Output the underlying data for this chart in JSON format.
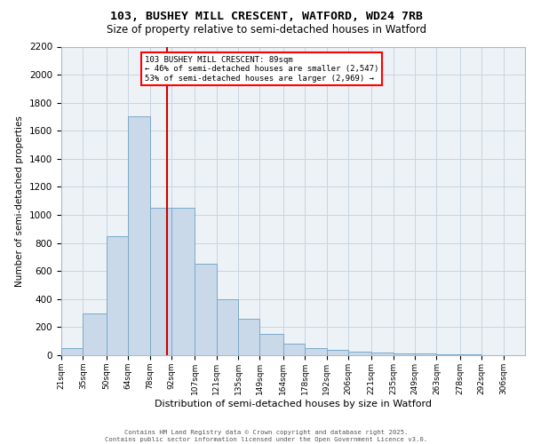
{
  "title_line1": "103, BUSHEY MILL CRESCENT, WATFORD, WD24 7RB",
  "title_line2": "Size of property relative to semi-detached houses in Watford",
  "xlabel": "Distribution of semi-detached houses by size in Watford",
  "ylabel": "Number of semi-detached properties",
  "annotation_line1": "103 BUSHEY MILL CRESCENT: 89sqm",
  "annotation_line2": "← 46% of semi-detached houses are smaller (2,547)",
  "annotation_line3": "53% of semi-detached houses are larger (2,969) →",
  "property_size": 89,
  "bar_color": "#c9d9ea",
  "bar_edge_color": "#7aaac8",
  "vline_color": "#cc0000",
  "grid_color": "#c8d4e0",
  "background_color": "#edf2f7",
  "footer_line1": "Contains HM Land Registry data © Crown copyright and database right 2025.",
  "footer_line2": "Contains public sector information licensed under the Open Government Licence v3.0.",
  "bin_labels": [
    "21sqm",
    "35sqm",
    "50sqm",
    "64sqm",
    "78sqm",
    "92sqm",
    "107sqm",
    "121sqm",
    "135sqm",
    "149sqm",
    "164sqm",
    "178sqm",
    "192sqm",
    "206sqm",
    "221sqm",
    "235sqm",
    "249sqm",
    "263sqm",
    "278sqm",
    "292sqm",
    "306sqm"
  ],
  "bin_edges": [
    21,
    35,
    50,
    64,
    78,
    92,
    107,
    121,
    135,
    149,
    164,
    178,
    192,
    206,
    221,
    235,
    249,
    263,
    278,
    292,
    306,
    320
  ],
  "bar_heights": [
    50,
    300,
    850,
    1700,
    1050,
    1050,
    650,
    400,
    260,
    155,
    80,
    50,
    35,
    25,
    20,
    15,
    10,
    5,
    5,
    2,
    2
  ],
  "ylim": [
    0,
    2200
  ],
  "yticks": [
    0,
    200,
    400,
    600,
    800,
    1000,
    1200,
    1400,
    1600,
    1800,
    2000,
    2200
  ]
}
